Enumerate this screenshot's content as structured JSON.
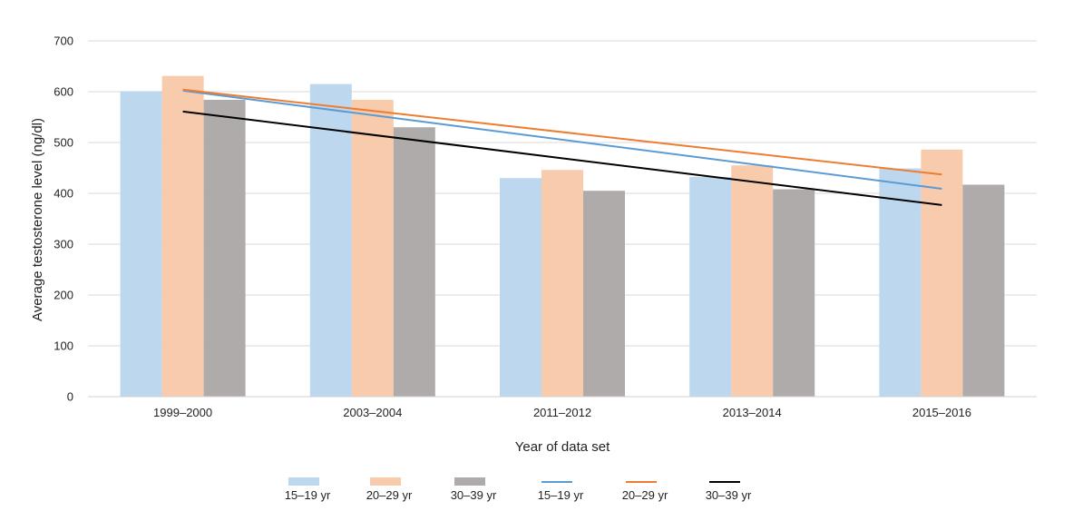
{
  "chart_data": {
    "type": "bar",
    "title": "",
    "xlabel": "Year of data set",
    "ylabel": "Average testosterone level (ng/dl)",
    "ylim": [
      0,
      700
    ],
    "yticks": [
      0,
      100,
      200,
      300,
      400,
      500,
      600,
      700
    ],
    "grid": true,
    "legend_position": "bottom",
    "categories": [
      "1999–2000",
      "2003–2004",
      "2011–2012",
      "2013–2014",
      "2015–2016"
    ],
    "series": [
      {
        "name": "15–19 yr",
        "kind": "bar",
        "color": "#bdd7ee",
        "values": [
          601,
          615,
          430,
          432,
          449
        ]
      },
      {
        "name": "20–29 yr",
        "kind": "bar",
        "color": "#f8cbad",
        "values": [
          631,
          584,
          446,
          455,
          486
        ]
      },
      {
        "name": "30–39 yr",
        "kind": "bar",
        "color": "#afabab",
        "values": [
          584,
          530,
          405,
          408,
          417
        ]
      }
    ],
    "trendlines": [
      {
        "name": "15–19 yr",
        "kind": "linear-trend",
        "color": "#5b9bd5",
        "start": 602,
        "end": 409
      },
      {
        "name": "20–29 yr",
        "kind": "linear-trend",
        "color": "#ed7d31",
        "start": 604,
        "end": 437
      },
      {
        "name": "30–39 yr",
        "kind": "linear-trend",
        "color": "#000000",
        "start": 561,
        "end": 377
      }
    ],
    "legend": [
      {
        "label": "15–19 yr",
        "symbol": "box",
        "color": "#bdd7ee"
      },
      {
        "label": "20–29 yr",
        "symbol": "box",
        "color": "#f8cbad"
      },
      {
        "label": "30–39 yr",
        "symbol": "box",
        "color": "#afabab"
      },
      {
        "label": "15–19 yr",
        "symbol": "line",
        "color": "#5b9bd5"
      },
      {
        "label": "20–29 yr",
        "symbol": "line",
        "color": "#ed7d31"
      },
      {
        "label": "30–39 yr",
        "symbol": "line",
        "color": "#000000"
      }
    ]
  }
}
